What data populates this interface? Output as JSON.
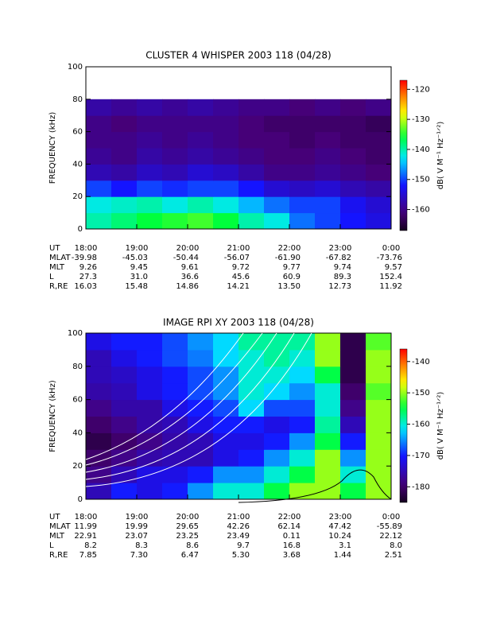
{
  "chart_data": [
    {
      "type": "heatmap",
      "title": "CLUSTER 4 WHISPER 2003 118 (04/28)",
      "ylabel": "FREQUENCY (kHz)",
      "xlabel": "UT",
      "colorbar_label": "dB( V M⁻¹ Hz⁻¹ᐟ²)",
      "xlim": [
        18,
        24
      ],
      "xticks": [
        {
          "value": 18,
          "label": "18:00"
        },
        {
          "value": 19,
          "label": "19:00"
        },
        {
          "value": 20,
          "label": "20:00"
        },
        {
          "value": 21,
          "label": "21:00"
        },
        {
          "value": 22,
          "label": "22:00"
        },
        {
          "value": 23,
          "label": "23:00"
        },
        {
          "value": 24,
          "label": "0:00"
        }
      ],
      "ylim": [
        0,
        100
      ],
      "yticks": [
        0,
        20,
        40,
        60,
        80,
        100
      ],
      "clim": [
        -167,
        -117
      ],
      "cticks": [
        -120,
        -130,
        -140,
        -150,
        -160
      ],
      "x_bins": [
        18,
        18.5,
        19,
        19.5,
        20,
        20.5,
        21,
        21.5,
        22,
        22.5,
        23,
        23.5,
        24
      ],
      "y_bins": [
        0,
        10,
        20,
        30,
        40,
        50,
        60,
        70,
        80
      ],
      "z": [
        [
          -140,
          -138,
          -136,
          -135,
          -134,
          -136,
          -140,
          -142,
          -148,
          -150,
          -152,
          -154
        ],
        [
          -142,
          -141,
          -140,
          -142,
          -140,
          -142,
          -145,
          -148,
          -150,
          -150,
          -153,
          -155
        ],
        [
          -150,
          -152,
          -150,
          -151,
          -150,
          -150,
          -152,
          -155,
          -156,
          -155,
          -157,
          -158
        ],
        [
          -157,
          -158,
          -156,
          -157,
          -155,
          -156,
          -158,
          -160,
          -160,
          -159,
          -160,
          -161
        ],
        [
          -159,
          -160,
          -158,
          -159,
          -158,
          -159,
          -160,
          -161,
          -161,
          -160,
          -161,
          -162
        ],
        [
          -160,
          -160,
          -159,
          -160,
          -159,
          -160,
          -161,
          -161,
          -162,
          -161,
          -162,
          -162
        ],
        [
          -160,
          -161,
          -160,
          -160,
          -160,
          -160,
          -161,
          -162,
          -162,
          -162,
          -162,
          -163
        ],
        [
          -158,
          -159,
          -158,
          -159,
          -158,
          -159,
          -160,
          -160,
          -161,
          -160,
          -161,
          -160
        ]
      ],
      "ephemeris": {
        "labels": [
          "MLAT",
          "MLT",
          "L",
          "R,RE"
        ],
        "rows": [
          [
            "-39.98",
            "-45.03",
            "-50.44",
            "-56.07",
            "-61.90",
            "-67.82",
            "-73.76"
          ],
          [
            "9.26",
            "9.45",
            "9.61",
            "9.72",
            "9.77",
            "9.74",
            "9.57"
          ],
          [
            "27.3",
            "31.0",
            "36.6",
            "45.6",
            "60.9",
            "89.3",
            "152.4"
          ],
          [
            "16.03",
            "15.48",
            "14.86",
            "14.21",
            "13.50",
            "12.73",
            "11.92"
          ]
        ]
      }
    },
    {
      "type": "heatmap",
      "title": "IMAGE RPI XY 2003 118 (04/28)",
      "ylabel": "FREQUENCY (kHz)",
      "xlabel": "UT",
      "colorbar_label": "dB( V M⁻¹ Hz⁻¹ᐟ²)",
      "xlim": [
        18,
        24
      ],
      "xticks": [
        {
          "value": 18,
          "label": "18:00"
        },
        {
          "value": 19,
          "label": "19:00"
        },
        {
          "value": 20,
          "label": "20:00"
        },
        {
          "value": 21,
          "label": "21:00"
        },
        {
          "value": 22,
          "label": "22:00"
        },
        {
          "value": 23,
          "label": "23:00"
        },
        {
          "value": 24,
          "label": "0:00"
        }
      ],
      "ylim": [
        0,
        100
      ],
      "yticks": [
        0,
        20,
        40,
        60,
        80,
        100
      ],
      "clim": [
        -185,
        -136
      ],
      "cticks": [
        -140,
        -150,
        -160,
        -170,
        -180
      ],
      "x_bins": [
        18,
        18.5,
        19,
        19.5,
        20,
        20.5,
        21,
        21.5,
        22,
        22.5,
        23,
        23.5,
        24
      ],
      "y_bins": [
        0,
        10,
        20,
        30,
        40,
        50,
        60,
        70,
        80,
        90,
        100
      ],
      "z": [
        [
          -175,
          -170,
          -172,
          -170,
          -165,
          -160,
          -160,
          -155,
          -150,
          -150,
          -155,
          -150
        ],
        [
          -178,
          -175,
          -172,
          -172,
          -170,
          -165,
          -165,
          -160,
          -155,
          -150,
          -160,
          -150
        ],
        [
          -180,
          -178,
          -176,
          -175,
          -175,
          -172,
          -170,
          -165,
          -160,
          -150,
          -165,
          -150
        ],
        [
          -182,
          -180,
          -178,
          -176,
          -175,
          -172,
          -172,
          -170,
          -165,
          -155,
          -170,
          -150
        ],
        [
          -180,
          -178,
          -176,
          -175,
          -172,
          -170,
          -170,
          -172,
          -170,
          -158,
          -175,
          -150
        ],
        [
          -178,
          -176,
          -176,
          -172,
          -170,
          -168,
          -162,
          -168,
          -168,
          -160,
          -178,
          -150
        ],
        [
          -176,
          -175,
          -172,
          -170,
          -168,
          -165,
          -160,
          -162,
          -165,
          -160,
          -180,
          -152
        ],
        [
          -175,
          -174,
          -172,
          -170,
          -168,
          -165,
          -160,
          -160,
          -162,
          -155,
          -182,
          -150
        ],
        [
          -175,
          -172,
          -170,
          -168,
          -166,
          -162,
          -160,
          -158,
          -160,
          -150,
          -182,
          -150
        ],
        [
          -172,
          -170,
          -170,
          -168,
          -165,
          -162,
          -158,
          -158,
          -158,
          -150,
          -182,
          -152
        ]
      ],
      "ephemeris": {
        "labels": [
          "MLAT",
          "MLT",
          "L",
          "R,RE"
        ],
        "rows": [
          [
            "11.99",
            "19.99",
            "29.65",
            "42.26",
            "62.14",
            "47.42",
            "-55.89"
          ],
          [
            "22.91",
            "23.07",
            "23.25",
            "23.49",
            "0.11",
            "10.24",
            "22.12"
          ],
          [
            "8.2",
            "8.3",
            "8.6",
            "9.7",
            "16.8",
            "3.1",
            "8.0"
          ],
          [
            "7.85",
            "7.30",
            "6.47",
            "5.30",
            "3.68",
            "1.44",
            "2.51"
          ]
        ]
      }
    }
  ]
}
